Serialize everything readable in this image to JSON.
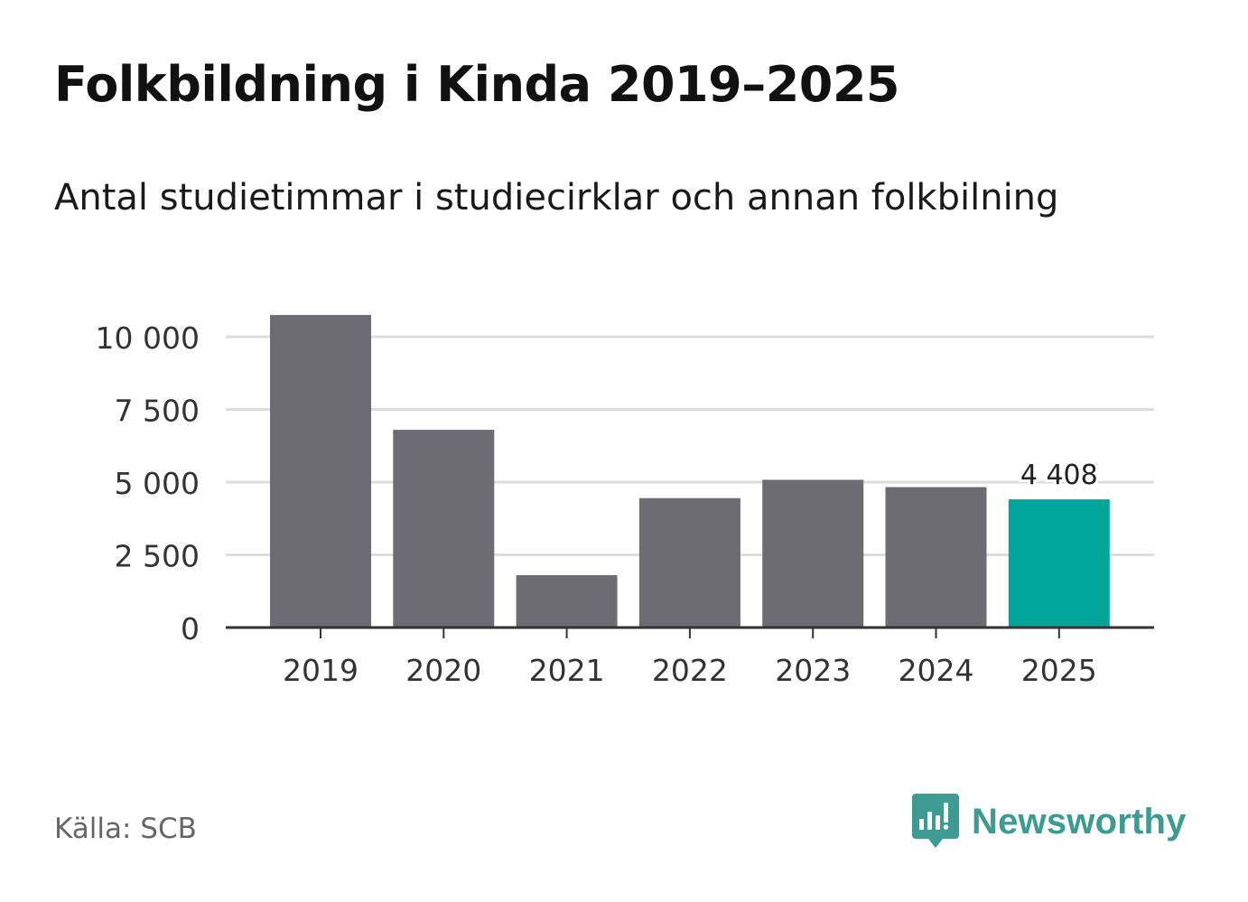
{
  "header": {
    "title": "Folkbildning i Kinda 2019–2025",
    "subtitle": "Antal studietimmar i studiecirklar och annan folkbilning"
  },
  "footer": {
    "source": "Källa: SCB",
    "brand": "Newsworthy"
  },
  "colors": {
    "bar": "#6d6c72",
    "highlight": "#00a59a",
    "grid": "#dddddd",
    "axis": "#333333",
    "brand": "#3e9b92"
  },
  "chart_data": {
    "type": "bar",
    "title": "Folkbildning i Kinda 2019–2025",
    "subtitle": "Antal studietimmar i studiecirklar och annan folkbilning",
    "categories": [
      "2019",
      "2020",
      "2021",
      "2022",
      "2023",
      "2024",
      "2025"
    ],
    "values": [
      10750,
      6800,
      1800,
      4450,
      5080,
      4830,
      4408
    ],
    "highlight_index": 6,
    "data_labels": [
      {
        "index": 6,
        "text": "4 408"
      }
    ],
    "yticks": [
      0,
      2500,
      5000,
      7500,
      10000
    ],
    "ytick_labels": [
      "0",
      "2 500",
      "5 000",
      "7 500",
      "10 000"
    ],
    "ylim": [
      0,
      10000
    ],
    "xlabel": "",
    "ylabel": "",
    "grid": true,
    "legend": "none"
  }
}
